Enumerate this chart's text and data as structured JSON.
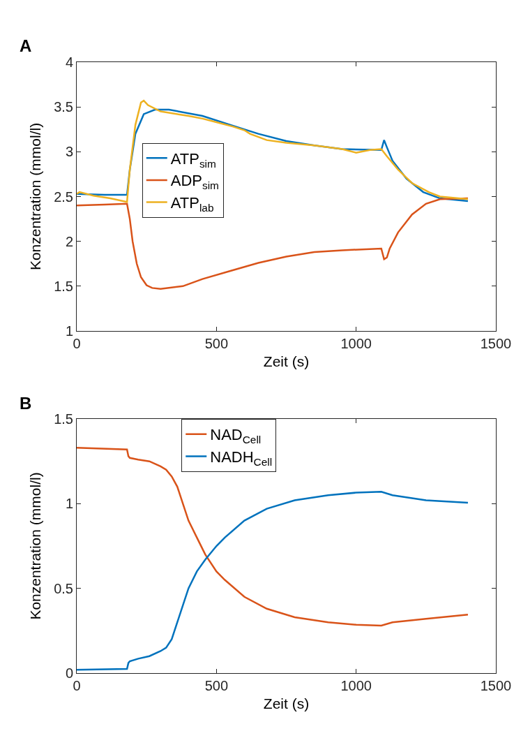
{
  "chart_data": [
    {
      "type": "line",
      "annotations": [
        "A"
      ],
      "xlabel": "Zeit (s)",
      "ylabel": "Konzentration (mmol/l)",
      "xlim": [
        0,
        1500
      ],
      "xticks": [
        0,
        500,
        1000,
        1500
      ],
      "ylim": [
        1,
        4
      ],
      "yticks": [
        1,
        1.5,
        2,
        2.5,
        3,
        3.5,
        4
      ],
      "grid": false,
      "legend": "left",
      "line_style": "solid",
      "series": [
        {
          "name": "ATP$_{sim}$",
          "color": "#0072bd",
          "x": [
            0,
            100,
            180,
            190,
            210,
            240,
            280,
            330,
            450,
            550,
            650,
            750,
            850,
            950,
            1090,
            1100,
            1110,
            1130,
            1180,
            1240,
            1300,
            1400
          ],
          "values": [
            2.53,
            2.52,
            2.52,
            2.8,
            3.2,
            3.42,
            3.47,
            3.47,
            3.4,
            3.3,
            3.2,
            3.12,
            3.07,
            3.03,
            3.02,
            3.13,
            3.05,
            2.9,
            2.7,
            2.55,
            2.48,
            2.45
          ]
        },
        {
          "name": "ADP$_{sim}$",
          "color": "#d95319",
          "x": [
            0,
            100,
            180,
            190,
            200,
            215,
            230,
            250,
            270,
            300,
            380,
            450,
            550,
            650,
            750,
            850,
            950,
            1090,
            1100,
            1110,
            1120,
            1150,
            1200,
            1250,
            1300,
            1400
          ],
          "values": [
            2.4,
            2.41,
            2.42,
            2.25,
            2.0,
            1.75,
            1.6,
            1.51,
            1.48,
            1.47,
            1.5,
            1.58,
            1.67,
            1.76,
            1.83,
            1.88,
            1.9,
            1.92,
            1.8,
            1.82,
            1.92,
            2.1,
            2.3,
            2.42,
            2.47,
            2.48
          ]
        },
        {
          "name": "ATP$_{lab}$",
          "color": "#edb120",
          "x": [
            0,
            10,
            60,
            120,
            180,
            190,
            210,
            230,
            240,
            255,
            300,
            400,
            450,
            500,
            560,
            600,
            620,
            680,
            750,
            850,
            950,
            1000,
            1050,
            1090,
            1110,
            1150,
            1200,
            1260,
            1300,
            1400
          ],
          "values": [
            2.53,
            2.55,
            2.51,
            2.48,
            2.44,
            2.8,
            3.3,
            3.55,
            3.57,
            3.52,
            3.45,
            3.4,
            3.37,
            3.33,
            3.28,
            3.24,
            3.2,
            3.13,
            3.1,
            3.07,
            3.03,
            2.99,
            3.02,
            3.03,
            2.95,
            2.8,
            2.65,
            2.55,
            2.5,
            2.47
          ]
        }
      ]
    },
    {
      "type": "line",
      "annotations": [
        "B"
      ],
      "xlabel": "Zeit (s)",
      "ylabel": "Konzentration (mmol/l)",
      "xlim": [
        0,
        1500
      ],
      "xticks": [
        0,
        500,
        1000,
        1500
      ],
      "ylim": [
        0,
        1.5
      ],
      "yticks": [
        0,
        0.5,
        1,
        1.5
      ],
      "grid": false,
      "legend": "top",
      "line_style": "solid",
      "series": [
        {
          "name": "NAD$_{Cell}$",
          "color": "#d95319",
          "x": [
            0,
            180,
            185,
            190,
            220,
            260,
            300,
            320,
            340,
            360,
            380,
            400,
            430,
            460,
            500,
            530,
            600,
            680,
            780,
            900,
            1000,
            1090,
            1130,
            1250,
            1400
          ],
          "values": [
            1.33,
            1.32,
            1.28,
            1.27,
            1.26,
            1.25,
            1.22,
            1.2,
            1.16,
            1.1,
            1.0,
            0.9,
            0.8,
            0.7,
            0.6,
            0.55,
            0.45,
            0.38,
            0.33,
            0.3,
            0.285,
            0.28,
            0.3,
            0.32,
            0.345
          ]
        },
        {
          "name": "NADH$_{Cell}$",
          "color": "#0072bd",
          "x": [
            0,
            180,
            185,
            190,
            220,
            260,
            300,
            320,
            340,
            360,
            380,
            400,
            430,
            460,
            500,
            530,
            600,
            680,
            780,
            900,
            1000,
            1090,
            1130,
            1250,
            1400
          ],
          "values": [
            0.02,
            0.025,
            0.06,
            0.07,
            0.085,
            0.1,
            0.13,
            0.15,
            0.2,
            0.3,
            0.4,
            0.5,
            0.6,
            0.67,
            0.75,
            0.8,
            0.9,
            0.97,
            1.02,
            1.05,
            1.065,
            1.07,
            1.05,
            1.02,
            1.005
          ]
        }
      ]
    }
  ]
}
